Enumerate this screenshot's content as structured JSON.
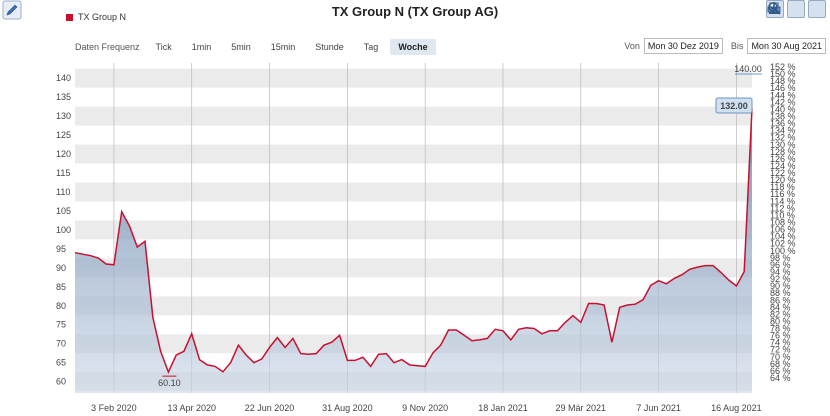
{
  "header": {
    "title": "TX Group N (TX Group AG)",
    "legend_label": "TX Group N",
    "legend_color": "#c8102e",
    "edit_icon": "pencil-icon",
    "tools": [
      "print-icon",
      "download-icon",
      "zoom-icon"
    ]
  },
  "frequency": {
    "label": "Daten Frequenz",
    "options": [
      "Tick",
      "1min",
      "5min",
      "15min",
      "Stunde",
      "Tag",
      "Woche"
    ],
    "selected": "Woche"
  },
  "range": {
    "from_label": "Von",
    "from_value": "Mon 30 Dez 2019",
    "to_label": "Bis",
    "to_value": "Mon 30 Aug 2021"
  },
  "chart_data": {
    "type": "area",
    "series": [
      {
        "name": "TX Group N",
        "color": "#c8102e"
      }
    ],
    "x": [
      "2019-12-30",
      "2020-01-06",
      "2020-01-13",
      "2020-01-20",
      "2020-01-27",
      "2020-02-03",
      "2020-02-10",
      "2020-02-17",
      "2020-02-24",
      "2020-03-02",
      "2020-03-09",
      "2020-03-16",
      "2020-03-23",
      "2020-03-30",
      "2020-04-06",
      "2020-04-13",
      "2020-04-20",
      "2020-04-27",
      "2020-05-04",
      "2020-05-11",
      "2020-05-18",
      "2020-05-25",
      "2020-06-01",
      "2020-06-08",
      "2020-06-15",
      "2020-06-22",
      "2020-06-29",
      "2020-07-06",
      "2020-07-13",
      "2020-07-20",
      "2020-07-27",
      "2020-08-03",
      "2020-08-10",
      "2020-08-17",
      "2020-08-24",
      "2020-08-31",
      "2020-09-07",
      "2020-09-14",
      "2020-09-21",
      "2020-09-28",
      "2020-10-05",
      "2020-10-12",
      "2020-10-19",
      "2020-10-26",
      "2020-11-02",
      "2020-11-09",
      "2020-11-16",
      "2020-11-23",
      "2020-11-30",
      "2020-12-07",
      "2020-12-14",
      "2020-12-21",
      "2020-12-28",
      "2021-01-04",
      "2021-01-11",
      "2021-01-18",
      "2021-01-25",
      "2021-02-01",
      "2021-02-08",
      "2021-02-15",
      "2021-02-22",
      "2021-03-01",
      "2021-03-08",
      "2021-03-15",
      "2021-03-22",
      "2021-03-29",
      "2021-04-05",
      "2021-04-12",
      "2021-04-19",
      "2021-04-26",
      "2021-05-03",
      "2021-05-10",
      "2021-05-17",
      "2021-05-24",
      "2021-05-31",
      "2021-06-07",
      "2021-06-14",
      "2021-06-21",
      "2021-06-28",
      "2021-07-05",
      "2021-07-12",
      "2021-07-19",
      "2021-07-26",
      "2021-08-02",
      "2021-08-09",
      "2021-08-16",
      "2021-08-23",
      "2021-08-30"
    ],
    "values": [
      94.0,
      93.6,
      93.2,
      92.6,
      91.0,
      90.8,
      104.8,
      101.0,
      95.5,
      97.0,
      77.0,
      68.0,
      62.5,
      67.0,
      68.0,
      72.6,
      65.8,
      64.4,
      64.0,
      62.6,
      65.0,
      69.6,
      67.0,
      65.0,
      66.0,
      69.0,
      71.6,
      69.0,
      71.4,
      67.4,
      67.2,
      67.4,
      69.6,
      70.4,
      72.2,
      65.6,
      65.6,
      66.4,
      64.0,
      67.2,
      67.4,
      65.0,
      65.8,
      64.4,
      64.2,
      64.0,
      67.6,
      69.6,
      73.6,
      73.6,
      72.2,
      70.8,
      71.0,
      71.4,
      73.8,
      73.4,
      71.0,
      73.8,
      74.2,
      74.0,
      72.6,
      73.4,
      73.4,
      75.6,
      77.4,
      75.6,
      80.6,
      80.6,
      80.2,
      70.4,
      79.6,
      80.2,
      80.4,
      81.6,
      85.4,
      86.6,
      85.8,
      87.2,
      88.2,
      89.6,
      90.2,
      90.6,
      90.6,
      88.8,
      86.8,
      85.2,
      89.0,
      132.0
    ],
    "x_ticks": [
      "3 Feb 2020",
      "13 Apr 2020",
      "22 Jun 2020",
      "31 Aug 2020",
      "9 Nov 2020",
      "18 Jan 2021",
      "29 Mär 2021",
      "7 Jun 2021",
      "16 Aug 2021"
    ],
    "y_ticks": [
      60,
      65,
      70,
      75,
      80,
      85,
      90,
      95,
      100,
      105,
      110,
      115,
      120,
      125,
      130,
      135,
      140
    ],
    "y_right_ticks": [
      "64 %",
      "66 %",
      "68 %",
      "70 %",
      "72 %",
      "74 %",
      "76 %",
      "78 %",
      "80 %",
      "82 %",
      "84 %",
      "86 %",
      "88 %",
      "90 %",
      "92 %",
      "94 %",
      "96 %",
      "98 %",
      "100 %",
      "102 %",
      "104 %",
      "106 %",
      "108 %",
      "110 %",
      "112 %",
      "114 %",
      "116 %",
      "118 %",
      "120 %",
      "122 %",
      "124 %",
      "126 %",
      "128 %",
      "130 %",
      "132 %",
      "134 %",
      "136 %",
      "138 %",
      "140 %",
      "142 %",
      "144 %",
      "146 %",
      "148 %",
      "150 %",
      "152 %"
    ],
    "ylim": [
      57,
      144
    ],
    "annotations": {
      "min_label": "60.10",
      "last_label": "132.00",
      "max_label": "140.00"
    },
    "grid": true
  }
}
